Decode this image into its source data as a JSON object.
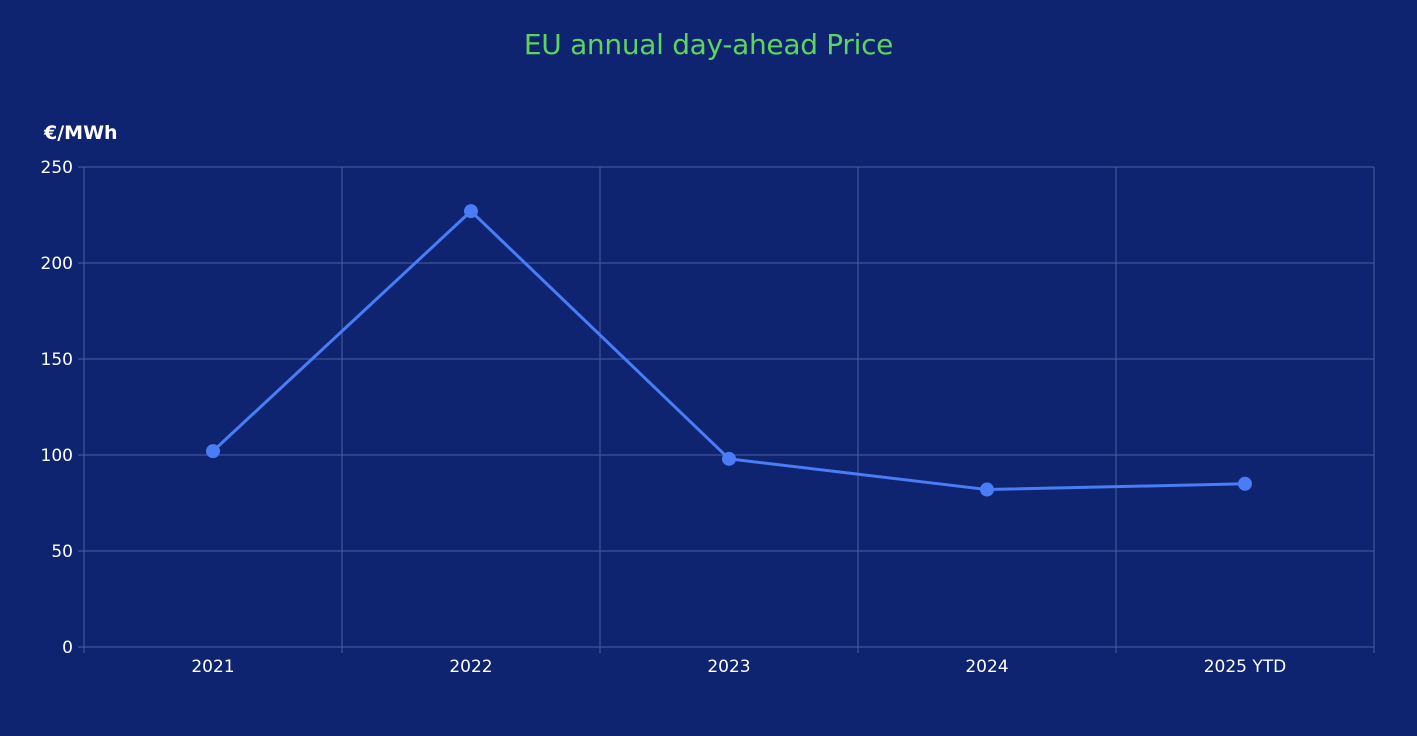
{
  "chart_data": {
    "type": "line",
    "title": "EU annual day-ahead Price",
    "xlabel": "",
    "ylabel": "€/MWh",
    "categories": [
      "2021",
      "2022",
      "2023",
      "2024",
      "2025 YTD"
    ],
    "series": [
      {
        "values": [
          102,
          227,
          98,
          82,
          85
        ]
      }
    ],
    "ylim": [
      0,
      250
    ],
    "yticks": [
      0,
      50,
      100,
      150,
      200,
      250
    ],
    "grid": true,
    "legend": "none",
    "colors": {
      "background": "#0f2470",
      "title": "#5fd35b",
      "line": "#4a7cf5",
      "grid": "#4a5fa0",
      "text": "#ffffff"
    }
  }
}
